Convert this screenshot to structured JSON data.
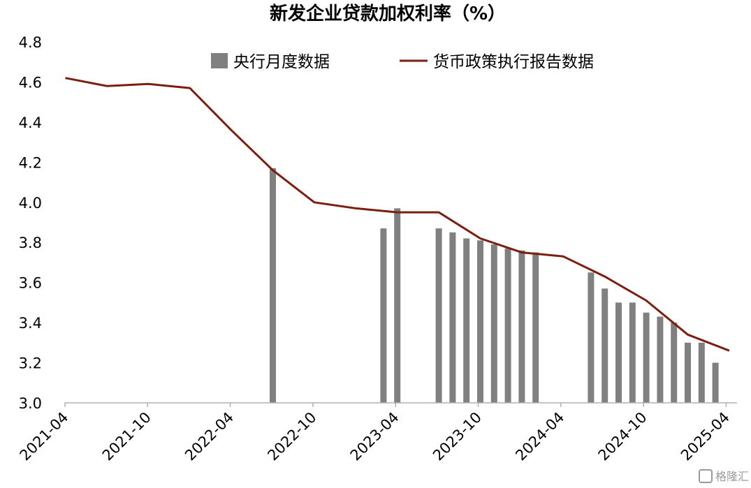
{
  "chart_data": {
    "type": "bar+line",
    "title": "新发企业贷款加权利率（%）",
    "ylim": [
      3.0,
      4.8
    ],
    "y_ticks": [
      "3.0",
      "3.2",
      "3.4",
      "3.6",
      "3.8",
      "4.0",
      "4.2",
      "4.4",
      "4.6",
      "4.8"
    ],
    "x_tick_labels": [
      "2021-04",
      "2021-10",
      "2022-04",
      "2022-10",
      "2023-04",
      "2023-10",
      "2024-04",
      "2024-10",
      "2025-04"
    ],
    "legend_position": "top",
    "grid": false,
    "series": [
      {
        "name": "央行月度数据",
        "type": "bar",
        "color": "#808080",
        "points": [
          {
            "date": "2022-06",
            "value": 4.17
          },
          {
            "date": "2023-02",
            "value": 3.87
          },
          {
            "date": "2023-03",
            "value": 3.97
          },
          {
            "date": "2023-06",
            "value": 3.87
          },
          {
            "date": "2023-07",
            "value": 3.85
          },
          {
            "date": "2023-08",
            "value": 3.82
          },
          {
            "date": "2023-09",
            "value": 3.81
          },
          {
            "date": "2023-10",
            "value": 3.79
          },
          {
            "date": "2023-11",
            "value": 3.77
          },
          {
            "date": "2023-12",
            "value": 3.76
          },
          {
            "date": "2024-01",
            "value": 3.75
          },
          {
            "date": "2024-05",
            "value": 3.65
          },
          {
            "date": "2024-06",
            "value": 3.57
          },
          {
            "date": "2024-07",
            "value": 3.5
          },
          {
            "date": "2024-08",
            "value": 3.5
          },
          {
            "date": "2024-09",
            "value": 3.45
          },
          {
            "date": "2024-10",
            "value": 3.43
          },
          {
            "date": "2024-11",
            "value": 3.4
          },
          {
            "date": "2024-12",
            "value": 3.3
          },
          {
            "date": "2025-01",
            "value": 3.3
          },
          {
            "date": "2025-02",
            "value": 3.2
          }
        ]
      },
      {
        "name": "货币政策执行报告数据",
        "type": "line",
        "color": "#7b1e0f",
        "points": [
          {
            "date": "2021-03",
            "value": 4.62
          },
          {
            "date": "2021-06",
            "value": 4.58
          },
          {
            "date": "2021-09",
            "value": 4.59
          },
          {
            "date": "2021-12",
            "value": 4.57
          },
          {
            "date": "2022-03",
            "value": 4.36
          },
          {
            "date": "2022-06",
            "value": 4.16
          },
          {
            "date": "2022-09",
            "value": 4.0
          },
          {
            "date": "2022-12",
            "value": 3.97
          },
          {
            "date": "2023-03",
            "value": 3.95
          },
          {
            "date": "2023-06",
            "value": 3.95
          },
          {
            "date": "2023-09",
            "value": 3.82
          },
          {
            "date": "2023-12",
            "value": 3.75
          },
          {
            "date": "2024-03",
            "value": 3.73
          },
          {
            "date": "2024-06",
            "value": 3.63
          },
          {
            "date": "2024-09",
            "value": 3.51
          },
          {
            "date": "2024-12",
            "value": 3.34
          },
          {
            "date": "2025-03",
            "value": 3.26
          }
        ]
      }
    ]
  },
  "watermark": "格隆汇"
}
